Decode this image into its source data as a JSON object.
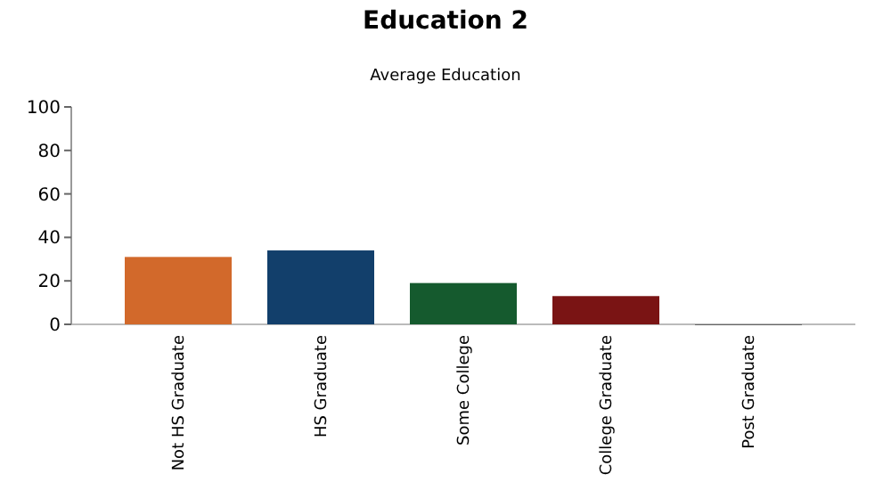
{
  "chart_data": {
    "type": "bar",
    "title": "Education 2",
    "subtitle": "Average Education",
    "categories": [
      "Not HS Graduate",
      "HS Graduate",
      "Some College",
      "College Graduate",
      "Post Graduate"
    ],
    "values": [
      31,
      34,
      19,
      13,
      0
    ],
    "colors": [
      "#d2692b",
      "#123f6b",
      "#155a2e",
      "#7a1414",
      "#666666"
    ],
    "ylim": [
      0,
      100
    ],
    "yticks": [
      0,
      20,
      40,
      60,
      80,
      100
    ],
    "grid": false
  }
}
